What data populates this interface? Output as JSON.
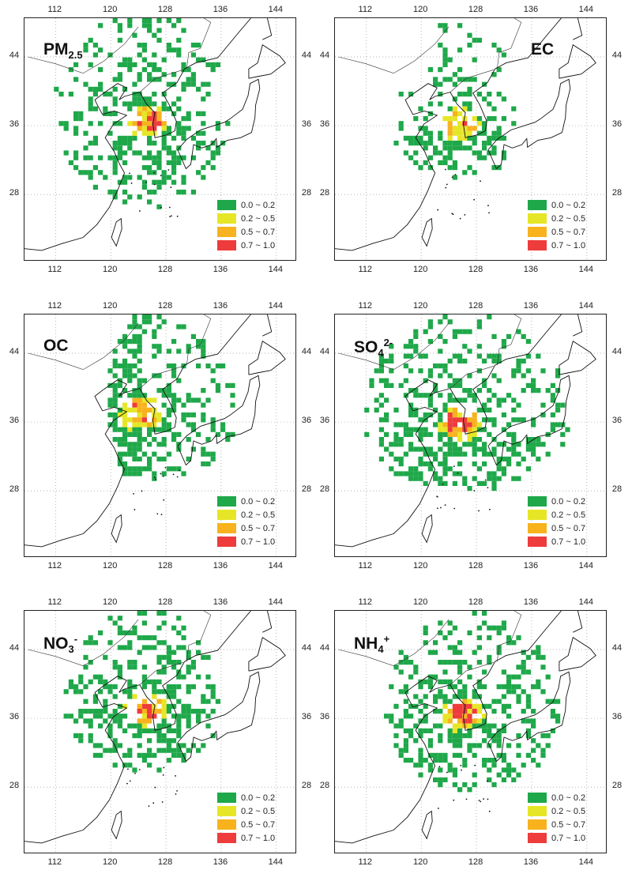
{
  "x_ticks": [
    "112",
    "120",
    "128",
    "136",
    "144"
  ],
  "y_ticks": [
    "44",
    "36",
    "28"
  ],
  "legend": [
    {
      "label": "0.0 ~ 0.2",
      "color": "#1fa84a"
    },
    {
      "label": "0.2 ~ 0.5",
      "color": "#e6e626"
    },
    {
      "label": "0.5 ~ 0.7",
      "color": "#f7b21e"
    },
    {
      "label": "0.7 ~ 1.0",
      "color": "#ee3b3b"
    }
  ],
  "panels": [
    {
      "id": "pm25",
      "species": "PM",
      "sub": "2.5",
      "sup": ""
    },
    {
      "id": "ec",
      "species": "EC",
      "sub": "",
      "sup": ""
    },
    {
      "id": "oc",
      "species": "OC",
      "sub": "",
      "sup": ""
    },
    {
      "id": "so4",
      "species": "SO",
      "sub": "4",
      "sup": "2-"
    },
    {
      "id": "no3",
      "species": "NO",
      "sub": "3",
      "sup": "-"
    },
    {
      "id": "nh4",
      "species": "NH",
      "sub": "4",
      "sup": "+"
    }
  ]
}
